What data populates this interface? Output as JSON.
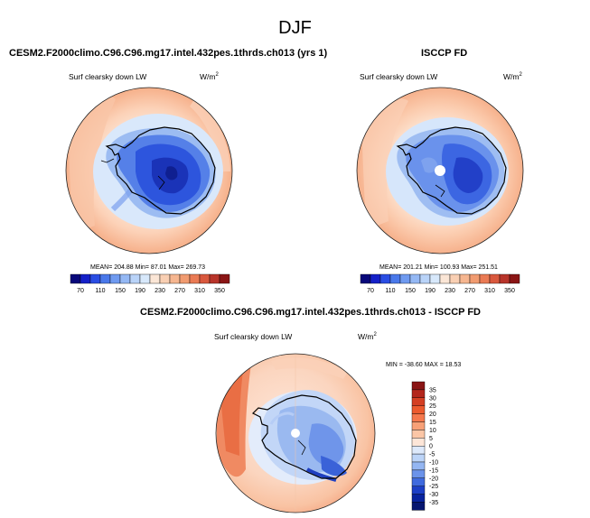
{
  "figure": {
    "title": "DJF",
    "left_panel_title": "CESM2.F2000climo.C96.C96.mg17.intel.432pes.1thrds.ch013 (yrs 1)",
    "right_panel_title": "ISCCP FD",
    "diff_panel_title": "CESM2.F2000climo.C96.C96.mg17.intel.432pes.1thrds.ch013 - ISCCP FD"
  },
  "panels": {
    "left": {
      "variable": "Surf clearsky down LW",
      "units_base": "W/m",
      "units_exp": "2",
      "stats": "MEAN= 204.88  Min=  87.01  Max= 269.73"
    },
    "right": {
      "variable": "Surf clearsky down LW",
      "units_base": "W/m",
      "units_exp": "2",
      "stats": "MEAN= 201.21  Min= 100.93  Max= 251.51"
    },
    "diff": {
      "variable": "Surf clearsky down LW",
      "units_base": "W/m",
      "units_exp": "2",
      "stats": "MIN = -38.60 MAX =  18.53"
    }
  },
  "colorbars": {
    "abs_labels": [
      "70",
      "110",
      "150",
      "190",
      "230",
      "270",
      "310",
      "350"
    ],
    "abs_colors": [
      "#08087a",
      "#1520c8",
      "#2a4de3",
      "#4a78ea",
      "#6f9af0",
      "#94b8f4",
      "#b9d3f8",
      "#d7e8fb",
      "#fbe6d6",
      "#f9cfb3",
      "#f6b690",
      "#f19b70",
      "#ea7a54",
      "#d9583d",
      "#b8342a",
      "#8a1515"
    ],
    "diff_labels": [
      "35",
      "30",
      "25",
      "20",
      "15",
      "10",
      "5",
      "0",
      "-5",
      "-10",
      "-15",
      "-20",
      "-25",
      "-30",
      "-35"
    ],
    "diff_colors": [
      "#8a1515",
      "#b3261c",
      "#d43f23",
      "#ec5a2e",
      "#f5784d",
      "#f7a077",
      "#fbc6a6",
      "#fde6d8",
      "#dde9fb",
      "#bcd4f8",
      "#94b6f2",
      "#6b93ea",
      "#3f6ade",
      "#1c3fc6",
      "#08239e",
      "#061670"
    ]
  },
  "chart_data": {
    "type": "heatmap",
    "projection": "south polar stereographic",
    "variable": "Surf clearsky down LW",
    "units": "W/m2",
    "season": "DJF",
    "maps": [
      {
        "name": "CESM2.F2000climo.C96.C96.mg17.intel.432pes.1thrds.ch013 (yrs 1)",
        "mean": 204.88,
        "min": 87.01,
        "max": 269.73
      },
      {
        "name": "ISCCP FD",
        "mean": 201.21,
        "min": 100.93,
        "max": 251.51
      },
      {
        "name": "CESM2.F2000climo.C96.C96.mg17.intel.432pes.1thrds.ch013 - ISCCP FD",
        "min": -38.6,
        "max": 18.53
      }
    ],
    "abs_levels": [
      70,
      110,
      150,
      190,
      230,
      270,
      310,
      350
    ],
    "diff_levels": [
      -35,
      -30,
      -25,
      -20,
      -15,
      -10,
      -5,
      0,
      5,
      10,
      15,
      20,
      25,
      30,
      35
    ]
  }
}
